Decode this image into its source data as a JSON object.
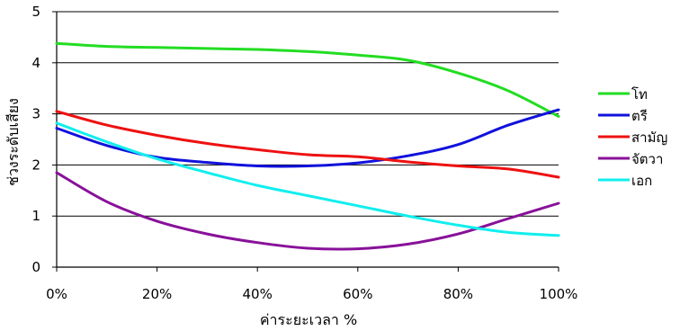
{
  "chart_data": {
    "type": "line",
    "xlabel": "ค่าระยะเวลา %",
    "ylabel": "ช่วงระดับเสียง",
    "x": [
      0,
      10,
      20,
      30,
      40,
      50,
      60,
      70,
      80,
      90,
      100
    ],
    "x_tick_labels": [
      "0%",
      "20%",
      "40%",
      "60%",
      "80%",
      "100%"
    ],
    "y_tick_labels": [
      "0",
      "1",
      "2",
      "3",
      "4",
      "5"
    ],
    "ylim": [
      0,
      5
    ],
    "xlim": [
      0,
      100
    ],
    "grid": "horizontal",
    "legend_position": "right",
    "series": [
      {
        "name": "โท",
        "color": "#22dd22",
        "values": [
          4.38,
          4.32,
          4.3,
          4.28,
          4.26,
          4.22,
          4.15,
          4.05,
          3.8,
          3.45,
          2.95
        ]
      },
      {
        "name": "ตรี",
        "color": "#1111dd",
        "values": [
          2.72,
          2.38,
          2.15,
          2.05,
          1.98,
          1.98,
          2.04,
          2.18,
          2.4,
          2.78,
          3.08
        ]
      },
      {
        "name": "สามัญ",
        "color": "#ee1111",
        "values": [
          3.05,
          2.78,
          2.58,
          2.42,
          2.3,
          2.2,
          2.16,
          2.06,
          1.98,
          1.92,
          1.76
        ]
      },
      {
        "name": "จัตวา",
        "color": "#881199",
        "values": [
          1.85,
          1.28,
          0.9,
          0.65,
          0.48,
          0.37,
          0.36,
          0.45,
          0.65,
          0.95,
          1.25
        ]
      },
      {
        "name": "เอก",
        "color": "#11eeee",
        "values": [
          2.82,
          2.45,
          2.12,
          1.85,
          1.6,
          1.4,
          1.2,
          1.0,
          0.82,
          0.68,
          0.62
        ]
      }
    ]
  }
}
